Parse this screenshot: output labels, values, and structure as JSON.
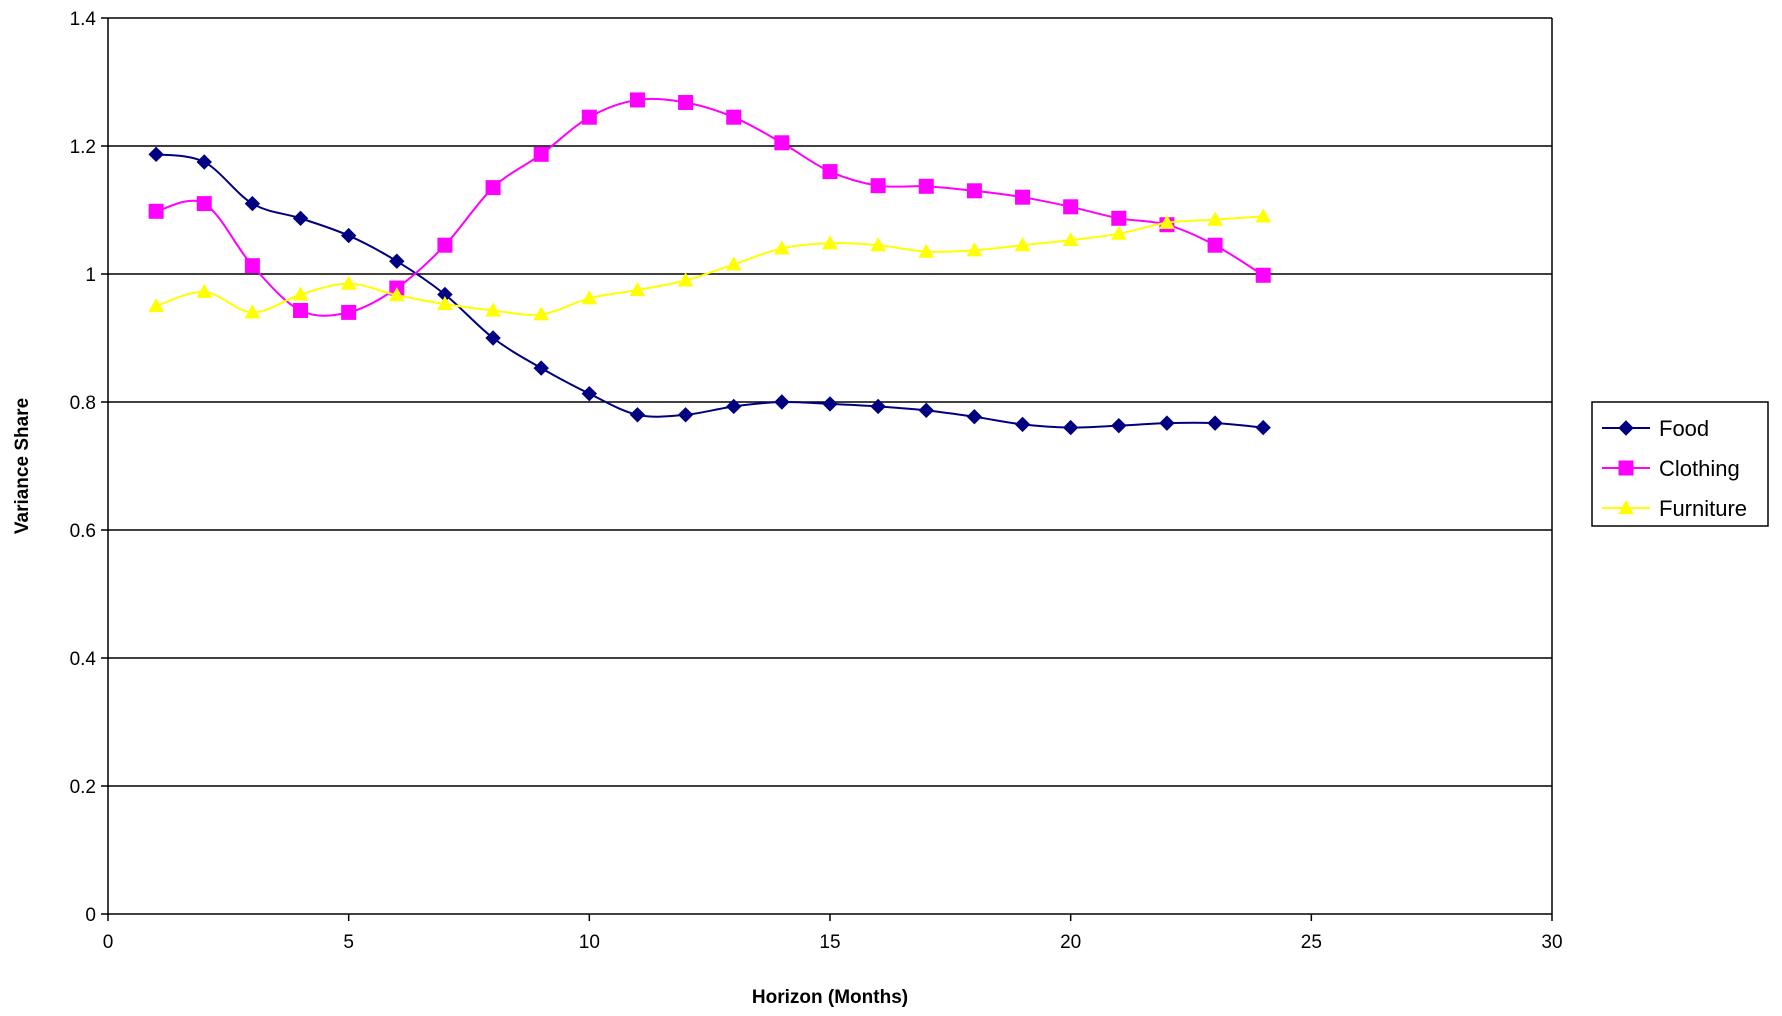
{
  "chart_data": {
    "type": "line",
    "title": "",
    "xlabel": "Horizon (Months)",
    "ylabel": "Variance Share",
    "xlim": [
      0,
      30
    ],
    "ylim": [
      0,
      1.4
    ],
    "x_ticks": [
      "0",
      "5",
      "10",
      "15",
      "20",
      "25",
      "30"
    ],
    "y_ticks": [
      "0",
      "0.2",
      "0.4",
      "0.6",
      "0.8",
      "1",
      "1.2",
      "1.4"
    ],
    "grid": "horizontal",
    "legend_position": "right",
    "x": [
      1,
      2,
      3,
      4,
      5,
      6,
      7,
      8,
      9,
      10,
      11,
      12,
      13,
      14,
      15,
      16,
      17,
      18,
      19,
      20,
      21,
      22,
      23,
      24
    ],
    "series": [
      {
        "name": "Food",
        "color": "#000080",
        "marker": "diamond",
        "values": [
          1.187,
          1.175,
          1.11,
          1.087,
          1.06,
          1.02,
          0.968,
          0.9,
          0.853,
          0.813,
          0.78,
          0.78,
          0.793,
          0.8,
          0.797,
          0.793,
          0.787,
          0.777,
          0.765,
          0.76,
          0.763,
          0.767,
          0.767,
          0.76
        ]
      },
      {
        "name": "Clothing",
        "color": "#FF00FF",
        "marker": "square",
        "values": [
          1.098,
          1.11,
          1.013,
          0.943,
          0.94,
          0.978,
          1.045,
          1.135,
          1.187,
          1.245,
          1.272,
          1.268,
          1.245,
          1.205,
          1.16,
          1.138,
          1.137,
          1.13,
          1.12,
          1.105,
          1.087,
          1.077,
          1.045,
          0.998
        ]
      },
      {
        "name": "Furniture",
        "color": "#FFFF00",
        "marker": "triangle",
        "values": [
          0.95,
          0.972,
          0.94,
          0.968,
          0.985,
          0.967,
          0.953,
          0.943,
          0.937,
          0.962,
          0.975,
          0.99,
          1.015,
          1.04,
          1.048,
          1.045,
          1.035,
          1.037,
          1.045,
          1.053,
          1.063,
          1.08,
          1.085,
          1.09
        ]
      }
    ]
  }
}
